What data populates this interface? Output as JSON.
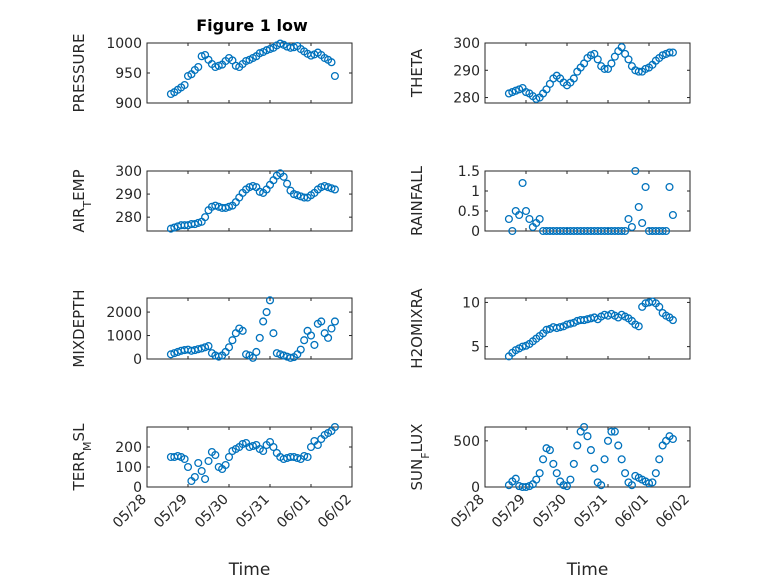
{
  "figure": {
    "title": "Figure 1 low"
  },
  "colors": {
    "marker": "#0072BD",
    "axes": "#262626"
  },
  "chart_data": [
    {
      "type": "scatter",
      "ylabel": "PRESSURE",
      "xlabel": "",
      "xlim": [
        "05/28",
        "06/02"
      ],
      "ylim": [
        900,
        1000
      ],
      "yticks": [
        900,
        950,
        1000
      ],
      "grid": "on",
      "xtick_labels_shown": false,
      "title": "Figure 1 low",
      "x": [
        "05/28 14:00",
        "05/28 16:00",
        "05/28 18:00",
        "05/28 20:00",
        "05/28 22:00",
        "05/29 00:00",
        "05/29 02:00",
        "05/29 04:00",
        "05/29 06:00",
        "05/29 08:00",
        "05/29 10:00",
        "05/29 12:00",
        "05/29 14:00",
        "05/29 16:00",
        "05/29 18:00",
        "05/29 20:00",
        "05/29 22:00",
        "05/30 00:00",
        "05/30 02:00",
        "05/30 04:00",
        "05/30 06:00",
        "05/30 08:00",
        "05/30 10:00",
        "05/30 12:00",
        "05/30 14:00",
        "05/30 16:00",
        "05/30 18:00",
        "05/30 20:00",
        "05/30 22:00",
        "05/31 00:00",
        "05/31 02:00",
        "05/31 04:00",
        "05/31 06:00",
        "05/31 08:00",
        "05/31 10:00",
        "05/31 12:00",
        "05/31 14:00",
        "05/31 16:00",
        "05/31 18:00",
        "05/31 20:00",
        "05/31 22:00",
        "06/01 00:00",
        "06/01 02:00",
        "06/01 04:00",
        "06/01 06:00",
        "06/01 08:00",
        "06/01 10:00",
        "06/01 12:00",
        "06/01 14:00"
      ],
      "y": [
        915,
        918,
        922,
        926,
        930,
        945,
        948,
        955,
        960,
        978,
        980,
        972,
        965,
        960,
        962,
        964,
        970,
        975,
        971,
        962,
        960,
        965,
        970,
        972,
        975,
        978,
        983,
        985,
        988,
        990,
        992,
        996,
        999,
        997,
        994,
        992,
        993,
        995,
        990,
        986,
        982,
        979,
        981,
        984,
        980,
        975,
        972,
        968,
        945
      ]
    },
    {
      "type": "scatter",
      "ylabel": "THETA",
      "xlabel": "",
      "xlim": [
        "05/28",
        "06/02"
      ],
      "ylim": [
        278,
        300
      ],
      "yticks": [
        280,
        290,
        300
      ],
      "grid": "on",
      "xtick_labels_shown": false,
      "x": [
        "05/28 14:00",
        "05/28 16:00",
        "05/28 18:00",
        "05/28 20:00",
        "05/28 22:00",
        "05/29 00:00",
        "05/29 02:00",
        "05/29 04:00",
        "05/29 06:00",
        "05/29 08:00",
        "05/29 10:00",
        "05/29 12:00",
        "05/29 14:00",
        "05/29 16:00",
        "05/29 18:00",
        "05/29 20:00",
        "05/29 22:00",
        "05/30 00:00",
        "05/30 02:00",
        "05/30 04:00",
        "05/30 06:00",
        "05/30 08:00",
        "05/30 10:00",
        "05/30 12:00",
        "05/30 14:00",
        "05/30 16:00",
        "05/30 18:00",
        "05/30 20:00",
        "05/30 22:00",
        "05/31 00:00",
        "05/31 02:00",
        "05/31 04:00",
        "05/31 06:00",
        "05/31 08:00",
        "05/31 10:00",
        "05/31 12:00",
        "05/31 14:00",
        "05/31 16:00",
        "05/31 18:00",
        "05/31 20:00",
        "05/31 22:00",
        "06/01 00:00",
        "06/01 02:00",
        "06/01 04:00",
        "06/01 06:00",
        "06/01 08:00",
        "06/01 10:00",
        "06/01 12:00",
        "06/01 14:00"
      ],
      "y": [
        281.5,
        282,
        282.5,
        283,
        283.5,
        282,
        281.5,
        280.5,
        279.5,
        280,
        281.5,
        283,
        285,
        287,
        288,
        287,
        285.5,
        284.5,
        285.5,
        287,
        289.5,
        291,
        292.5,
        294.5,
        295.5,
        296,
        294,
        291.5,
        290.5,
        290.5,
        292.5,
        295,
        297,
        298.5,
        296,
        294,
        291.5,
        290,
        289.5,
        289.5,
        290.5,
        291,
        292,
        293.5,
        294.5,
        295.5,
        296,
        296.5,
        296.5
      ]
    },
    {
      "type": "scatter",
      "ylabel": "AIR_TEMP",
      "xlabel": "",
      "xlim": [
        "05/28",
        "06/02"
      ],
      "ylim": [
        274,
        300
      ],
      "yticks": [
        280,
        290,
        300
      ],
      "grid": "on",
      "xtick_labels_shown": false,
      "x": [
        "05/28 14:00",
        "05/28 16:00",
        "05/28 18:00",
        "05/28 20:00",
        "05/28 22:00",
        "05/29 00:00",
        "05/29 02:00",
        "05/29 04:00",
        "05/29 06:00",
        "05/29 08:00",
        "05/29 10:00",
        "05/29 12:00",
        "05/29 14:00",
        "05/29 16:00",
        "05/29 18:00",
        "05/29 20:00",
        "05/29 22:00",
        "05/30 00:00",
        "05/30 02:00",
        "05/30 04:00",
        "05/30 06:00",
        "05/30 08:00",
        "05/30 10:00",
        "05/30 12:00",
        "05/30 14:00",
        "05/30 16:00",
        "05/30 18:00",
        "05/30 20:00",
        "05/30 22:00",
        "05/31 00:00",
        "05/31 02:00",
        "05/31 04:00",
        "05/31 06:00",
        "05/31 08:00",
        "05/31 10:00",
        "05/31 12:00",
        "05/31 14:00",
        "05/31 16:00",
        "05/31 18:00",
        "05/31 20:00",
        "05/31 22:00",
        "06/01 00:00",
        "06/01 02:00",
        "06/01 04:00",
        "06/01 06:00",
        "06/01 08:00",
        "06/01 10:00",
        "06/01 12:00",
        "06/01 14:00"
      ],
      "y": [
        275,
        275.5,
        276,
        276.5,
        276.5,
        276.5,
        277,
        277,
        277.5,
        278,
        280,
        283,
        284.5,
        285,
        284.5,
        284,
        284,
        284.5,
        285,
        286.5,
        288.5,
        290.5,
        292,
        293,
        293.5,
        293,
        291,
        290.5,
        292,
        294,
        296,
        298,
        299,
        297.5,
        294.5,
        291.5,
        290,
        289.5,
        289,
        288.5,
        288.5,
        289.5,
        290.5,
        292,
        293,
        293.5,
        293,
        292.5,
        292
      ]
    },
    {
      "type": "scatter",
      "ylabel": "RAINFALL",
      "xlabel": "",
      "xlim": [
        "05/28",
        "06/02"
      ],
      "ylim": [
        0,
        1.5
      ],
      "yticks": [
        0,
        0.5,
        1,
        1.5
      ],
      "grid": "on",
      "xtick_labels_shown": false,
      "x": [
        "05/28 14:00",
        "05/28 16:00",
        "05/28 18:00",
        "05/28 20:00",
        "05/28 22:00",
        "05/29 00:00",
        "05/29 02:00",
        "05/29 04:00",
        "05/29 06:00",
        "05/29 08:00",
        "05/29 10:00",
        "05/29 12:00",
        "05/29 14:00",
        "05/29 16:00",
        "05/29 18:00",
        "05/29 20:00",
        "05/29 22:00",
        "05/30 00:00",
        "05/30 02:00",
        "05/30 04:00",
        "05/30 06:00",
        "05/30 08:00",
        "05/30 10:00",
        "05/30 12:00",
        "05/30 14:00",
        "05/30 16:00",
        "05/30 18:00",
        "05/30 20:00",
        "05/30 22:00",
        "05/31 00:00",
        "05/31 02:00",
        "05/31 04:00",
        "05/31 06:00",
        "05/31 08:00",
        "05/31 10:00",
        "05/31 12:00",
        "05/31 14:00",
        "05/31 16:00",
        "05/31 18:00",
        "05/31 20:00",
        "05/31 22:00",
        "06/01 00:00",
        "06/01 02:00",
        "06/01 04:00",
        "06/01 06:00",
        "06/01 08:00",
        "06/01 10:00",
        "06/01 12:00",
        "06/01 14:00"
      ],
      "y": [
        0.3,
        0,
        0.5,
        0.4,
        1.2,
        0.5,
        0.3,
        0.1,
        0.2,
        0.3,
        0,
        0,
        0,
        0,
        0,
        0,
        0,
        0,
        0,
        0,
        0,
        0,
        0,
        0,
        0,
        0,
        0,
        0,
        0,
        0,
        0,
        0,
        0,
        0,
        0,
        0.3,
        0.1,
        1.5,
        0.6,
        0.2,
        1.1,
        0,
        0,
        0,
        0,
        0,
        0,
        1.1,
        0.4
      ]
    },
    {
      "type": "scatter",
      "ylabel": "MIXDEPTH",
      "xlabel": "",
      "xlim": [
        "05/28",
        "06/02"
      ],
      "ylim": [
        0,
        2600
      ],
      "yticks": [
        0,
        1000,
        2000
      ],
      "grid": "on",
      "xtick_labels_shown": false,
      "x": [
        "05/28 14:00",
        "05/28 16:00",
        "05/28 18:00",
        "05/28 20:00",
        "05/28 22:00",
        "05/29 00:00",
        "05/29 02:00",
        "05/29 04:00",
        "05/29 06:00",
        "05/29 08:00",
        "05/29 10:00",
        "05/29 12:00",
        "05/29 14:00",
        "05/29 16:00",
        "05/29 18:00",
        "05/29 20:00",
        "05/29 22:00",
        "05/30 00:00",
        "05/30 02:00",
        "05/30 04:00",
        "05/30 06:00",
        "05/30 08:00",
        "05/30 10:00",
        "05/30 12:00",
        "05/30 14:00",
        "05/30 16:00",
        "05/30 18:00",
        "05/30 20:00",
        "05/30 22:00",
        "05/31 00:00",
        "05/31 02:00",
        "05/31 04:00",
        "05/31 06:00",
        "05/31 08:00",
        "05/31 10:00",
        "05/31 12:00",
        "05/31 14:00",
        "05/31 16:00",
        "05/31 18:00",
        "05/31 20:00",
        "05/31 22:00",
        "06/01 00:00",
        "06/01 02:00",
        "06/01 04:00",
        "06/01 06:00",
        "06/01 08:00",
        "06/01 10:00",
        "06/01 12:00",
        "06/01 14:00"
      ],
      "y": [
        200,
        250,
        300,
        350,
        380,
        400,
        350,
        380,
        420,
        450,
        500,
        550,
        250,
        150,
        100,
        150,
        300,
        500,
        800,
        1100,
        1300,
        1200,
        200,
        150,
        50,
        300,
        900,
        1600,
        2000,
        2500,
        1100,
        250,
        200,
        150,
        100,
        50,
        80,
        200,
        400,
        800,
        1200,
        1000,
        600,
        1500,
        1600,
        1100,
        900,
        1300,
        1600
      ]
    },
    {
      "type": "scatter",
      "ylabel": "H2OMIXRA",
      "xlabel": "",
      "xlim": [
        "05/28",
        "06/02"
      ],
      "ylim": [
        3.6,
        10.5
      ],
      "yticks": [
        5,
        10
      ],
      "grid": "on",
      "xtick_labels_shown": false,
      "x": [
        "05/28 14:00",
        "05/28 16:00",
        "05/28 18:00",
        "05/28 20:00",
        "05/28 22:00",
        "05/29 00:00",
        "05/29 02:00",
        "05/29 04:00",
        "05/29 06:00",
        "05/29 08:00",
        "05/29 10:00",
        "05/29 12:00",
        "05/29 14:00",
        "05/29 16:00",
        "05/29 18:00",
        "05/29 20:00",
        "05/29 22:00",
        "05/30 00:00",
        "05/30 02:00",
        "05/30 04:00",
        "05/30 06:00",
        "05/30 08:00",
        "05/30 10:00",
        "05/30 12:00",
        "05/30 14:00",
        "05/30 16:00",
        "05/30 18:00",
        "05/30 20:00",
        "05/30 22:00",
        "05/31 00:00",
        "05/31 02:00",
        "05/31 04:00",
        "05/31 06:00",
        "05/31 08:00",
        "05/31 10:00",
        "05/31 12:00",
        "05/31 14:00",
        "05/31 16:00",
        "05/31 18:00",
        "05/31 20:00",
        "05/31 22:00",
        "06/01 00:00",
        "06/01 02:00",
        "06/01 04:00",
        "06/01 06:00",
        "06/01 08:00",
        "06/01 10:00",
        "06/01 12:00",
        "06/01 14:00"
      ],
      "y": [
        3.9,
        4.3,
        4.6,
        4.8,
        5.0,
        5.1,
        5.3,
        5.6,
        5.9,
        6.2,
        6.5,
        6.9,
        7.0,
        7.2,
        7.1,
        7.2,
        7.3,
        7.5,
        7.6,
        7.7,
        7.9,
        8.0,
        8.0,
        8.1,
        8.2,
        8.3,
        8.1,
        8.4,
        8.6,
        8.5,
        8.7,
        8.5,
        8.3,
        8.6,
        8.4,
        8.2,
        7.9,
        7.5,
        7.3,
        9.5,
        9.9,
        10.0,
        10.1,
        9.9,
        9.5,
        8.8,
        8.5,
        8.3,
        8.0
      ]
    },
    {
      "type": "scatter",
      "ylabel": "TERR_MSL",
      "xlabel": "Time",
      "xlim": [
        "05/28",
        "06/02"
      ],
      "xticks": [
        "05/28",
        "05/29",
        "05/30",
        "05/31",
        "06/01",
        "06/02"
      ],
      "ylim": [
        0,
        300
      ],
      "yticks": [
        0,
        100,
        200
      ],
      "grid": "on",
      "xtick_labels_shown": true,
      "x": [
        "05/28 14:00",
        "05/28 16:00",
        "05/28 18:00",
        "05/28 20:00",
        "05/28 22:00",
        "05/29 00:00",
        "05/29 02:00",
        "05/29 04:00",
        "05/29 06:00",
        "05/29 08:00",
        "05/29 10:00",
        "05/29 12:00",
        "05/29 14:00",
        "05/29 16:00",
        "05/29 18:00",
        "05/29 20:00",
        "05/29 22:00",
        "05/30 00:00",
        "05/30 02:00",
        "05/30 04:00",
        "05/30 06:00",
        "05/30 08:00",
        "05/30 10:00",
        "05/30 12:00",
        "05/30 14:00",
        "05/30 16:00",
        "05/30 18:00",
        "05/30 20:00",
        "05/30 22:00",
        "05/31 00:00",
        "05/31 02:00",
        "05/31 04:00",
        "05/31 06:00",
        "05/31 08:00",
        "05/31 10:00",
        "05/31 12:00",
        "05/31 14:00",
        "05/31 16:00",
        "05/31 18:00",
        "05/31 20:00",
        "05/31 22:00",
        "06/01 00:00",
        "06/01 02:00",
        "06/01 04:00",
        "06/01 06:00",
        "06/01 08:00",
        "06/01 10:00",
        "06/01 12:00",
        "06/01 14:00"
      ],
      "y": [
        150,
        150,
        155,
        150,
        140,
        100,
        30,
        50,
        120,
        80,
        40,
        130,
        175,
        160,
        100,
        90,
        110,
        150,
        180,
        190,
        200,
        215,
        220,
        200,
        205,
        210,
        190,
        180,
        210,
        225,
        200,
        170,
        150,
        140,
        145,
        150,
        150,
        145,
        140,
        155,
        150,
        200,
        230,
        210,
        240,
        260,
        270,
        280,
        300
      ]
    },
    {
      "type": "scatter",
      "ylabel": "SUN_FLUX",
      "xlabel": "Time",
      "xlim": [
        "05/28",
        "06/02"
      ],
      "xticks": [
        "05/28",
        "05/29",
        "05/30",
        "05/31",
        "06/01",
        "06/02"
      ],
      "ylim": [
        0,
        650
      ],
      "yticks": [
        0,
        500
      ],
      "grid": "on",
      "xtick_labels_shown": true,
      "x": [
        "05/28 14:00",
        "05/28 16:00",
        "05/28 18:00",
        "05/28 20:00",
        "05/28 22:00",
        "05/29 00:00",
        "05/29 02:00",
        "05/29 04:00",
        "05/29 06:00",
        "05/29 08:00",
        "05/29 10:00",
        "05/29 12:00",
        "05/29 14:00",
        "05/29 16:00",
        "05/29 18:00",
        "05/29 20:00",
        "05/29 22:00",
        "05/30 00:00",
        "05/30 02:00",
        "05/30 04:00",
        "05/30 06:00",
        "05/30 08:00",
        "05/30 10:00",
        "05/30 12:00",
        "05/30 14:00",
        "05/30 16:00",
        "05/30 18:00",
        "05/30 20:00",
        "05/30 22:00",
        "05/31 00:00",
        "05/31 02:00",
        "05/31 04:00",
        "05/31 06:00",
        "05/31 08:00",
        "05/31 10:00",
        "05/31 12:00",
        "05/31 14:00",
        "05/31 16:00",
        "05/31 18:00",
        "05/31 20:00",
        "05/31 22:00",
        "06/01 00:00",
        "06/01 02:00",
        "06/01 04:00",
        "06/01 06:00",
        "06/01 08:00",
        "06/01 10:00",
        "06/01 12:00",
        "06/01 14:00"
      ],
      "y": [
        20,
        60,
        90,
        10,
        0,
        0,
        10,
        30,
        80,
        150,
        300,
        420,
        400,
        250,
        150,
        60,
        20,
        10,
        80,
        250,
        450,
        600,
        650,
        550,
        400,
        200,
        50,
        20,
        300,
        500,
        600,
        600,
        450,
        300,
        150,
        50,
        20,
        120,
        100,
        80,
        60,
        40,
        50,
        150,
        300,
        450,
        500,
        550,
        520
      ]
    }
  ]
}
